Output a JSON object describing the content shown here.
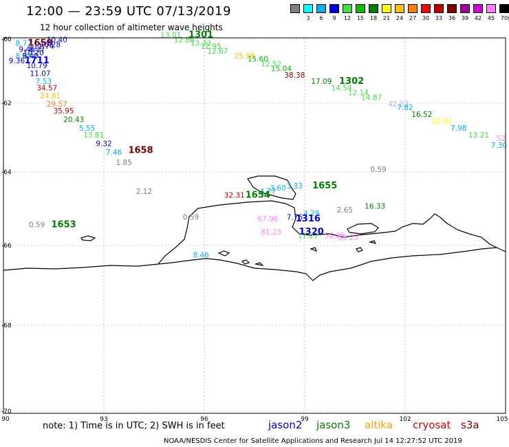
{
  "header": {
    "title": "12:00 — 23:59 UTC 07/13/2019",
    "subtitle": "12 hour collection of altimeter wave heights"
  },
  "legend": {
    "unit": "(ft)",
    "bins": [
      {
        "label": "",
        "color": "#808080"
      },
      {
        "label": "3",
        "color": "#00ffff"
      },
      {
        "label": "6",
        "color": "#00b0f0"
      },
      {
        "label": "9",
        "color": "#0000e0"
      },
      {
        "label": "12",
        "color": "#40e040"
      },
      {
        "label": "15",
        "color": "#00c000"
      },
      {
        "label": "18",
        "color": "#008000"
      },
      {
        "label": "21",
        "color": "#ffff00"
      },
      {
        "label": "24",
        "color": "#ffc000"
      },
      {
        "label": "27",
        "color": "#ff8000"
      },
      {
        "label": "30",
        "color": "#ff0000"
      },
      {
        "label": "33",
        "color": "#c00000"
      },
      {
        "label": "36",
        "color": "#800000"
      },
      {
        "label": "39",
        "color": "#a000a0"
      },
      {
        "label": "42",
        "color": "#d000d0"
      },
      {
        "label": "45",
        "color": "#ff80ff"
      },
      {
        "label": "70",
        "color": "#000000"
      }
    ]
  },
  "axes": {
    "y_ticks": [
      "-60",
      "-62",
      "-64",
      "-66",
      "-68",
      "-70"
    ],
    "x_ticks": [
      "90",
      "93",
      "96",
      "99",
      "102",
      "105"
    ]
  },
  "labels": [
    {
      "t": "8.77",
      "lon": 90.6,
      "lat": -60.2,
      "c": "#00b0f0"
    },
    {
      "t": "1659",
      "lon": 91.1,
      "lat": -60.2,
      "c": "#800000",
      "b": 1
    },
    {
      "t": "10.40",
      "lon": 91.6,
      "lat": -60.1,
      "c": "#0000e0"
    },
    {
      "t": "10.28",
      "lon": 91.4,
      "lat": -60.25,
      "c": "#0000e0"
    },
    {
      "t": "11.74",
      "lon": 91.2,
      "lat": -60.3,
      "c": "#0000e0"
    },
    {
      "t": "9.46",
      "lon": 90.7,
      "lat": -60.4,
      "c": "#0000e0"
    },
    {
      "t": "8.37",
      "lon": 91.0,
      "lat": -60.4,
      "c": "#0000e0"
    },
    {
      "t": "10.20",
      "lon": 90.9,
      "lat": -60.5,
      "c": "#0000e0"
    },
    {
      "t": "8.85",
      "lon": 90.6,
      "lat": -60.6,
      "c": "#00b0f0"
    },
    {
      "t": "9.40",
      "lon": 90.8,
      "lat": -60.6,
      "c": "#0000e0"
    },
    {
      "t": "1711",
      "lon": 91.0,
      "lat": -60.75,
      "c": "#0000e0",
      "b": 1
    },
    {
      "t": "9.36",
      "lon": 90.4,
      "lat": -60.75,
      "c": "#0000e0"
    },
    {
      "t": "10.79",
      "lon": 91.0,
      "lat": -60.9,
      "c": "#0000e0"
    },
    {
      "t": "11.07",
      "lon": 91.1,
      "lat": -61.15,
      "c": "#0000e0"
    },
    {
      "t": "7.53",
      "lon": 91.2,
      "lat": -61.4,
      "c": "#00b0f0"
    },
    {
      "t": "34.57",
      "lon": 91.3,
      "lat": -61.6,
      "c": "#c00000"
    },
    {
      "t": "24.81",
      "lon": 91.4,
      "lat": -61.85,
      "c": "#ffc000"
    },
    {
      "t": "29.57",
      "lon": 91.6,
      "lat": -62.1,
      "c": "#ff8000"
    },
    {
      "t": "35.95",
      "lon": 91.8,
      "lat": -62.3,
      "c": "#c00000"
    },
    {
      "t": "20.43",
      "lon": 92.1,
      "lat": -62.55,
      "c": "#008000"
    },
    {
      "t": "5.55",
      "lon": 92.5,
      "lat": -62.8,
      "c": "#00b0f0"
    },
    {
      "t": "13.81",
      "lon": 92.7,
      "lat": -63.0,
      "c": "#40e040"
    },
    {
      "t": "9.32",
      "lon": 93.0,
      "lat": -63.25,
      "c": "#0000e0"
    },
    {
      "t": "7.46",
      "lon": 93.3,
      "lat": -63.5,
      "c": "#00b0f0"
    },
    {
      "t": "1658",
      "lon": 94.1,
      "lat": -63.45,
      "c": "#800000",
      "b": 1
    },
    {
      "t": "1.85",
      "lon": 93.6,
      "lat": -63.8,
      "c": "#808080"
    },
    {
      "t": "13.01",
      "lon": 95.0,
      "lat": -59.95,
      "c": "#40e040"
    },
    {
      "t": "1301",
      "lon": 95.9,
      "lat": -59.95,
      "c": "#008000",
      "b": 1
    },
    {
      "t": "12.86",
      "lon": 95.4,
      "lat": -60.1,
      "c": "#40e040"
    },
    {
      "t": "13.33",
      "lon": 95.9,
      "lat": -60.2,
      "c": "#40e040"
    },
    {
      "t": "12.95",
      "lon": 96.2,
      "lat": -60.3,
      "c": "#40e040"
    },
    {
      "t": "12.67",
      "lon": 96.4,
      "lat": -60.45,
      "c": "#40e040"
    },
    {
      "t": "25.98",
      "lon": 97.2,
      "lat": -60.6,
      "c": "#ffc000"
    },
    {
      "t": "15.60",
      "lon": 97.6,
      "lat": -60.7,
      "c": "#00c000"
    },
    {
      "t": "12.52",
      "lon": 98.0,
      "lat": -60.85,
      "c": "#40e040"
    },
    {
      "t": "15.04",
      "lon": 98.3,
      "lat": -61.0,
      "c": "#00c000"
    },
    {
      "t": "38.38",
      "lon": 98.7,
      "lat": -61.2,
      "c": "#800000"
    },
    {
      "t": "17.09",
      "lon": 99.5,
      "lat": -61.4,
      "c": "#008000"
    },
    {
      "t": "1302",
      "lon": 100.4,
      "lat": -61.4,
      "c": "#008000",
      "b": 1
    },
    {
      "t": "14.54",
      "lon": 100.1,
      "lat": -61.6,
      "c": "#40e040"
    },
    {
      "t": "12.14",
      "lon": 100.6,
      "lat": -61.75,
      "c": "#40e040"
    },
    {
      "t": "14.87",
      "lon": 101.0,
      "lat": -61.9,
      "c": "#40e040"
    },
    {
      "t": "42.03",
      "lon": 101.8,
      "lat": -62.1,
      "c": "#b0b0ff"
    },
    {
      "t": "7.82",
      "lon": 102.0,
      "lat": -62.2,
      "c": "#00b0f0"
    },
    {
      "t": "16.52",
      "lon": 102.5,
      "lat": -62.4,
      "c": "#008000"
    },
    {
      "t": "22.87",
      "lon": 103.1,
      "lat": -62.6,
      "c": "#ffff00"
    },
    {
      "t": "7.98",
      "lon": 103.6,
      "lat": -62.8,
      "c": "#00b0f0"
    },
    {
      "t": "13.21",
      "lon": 104.2,
      "lat": -63.0,
      "c": "#40e040"
    },
    {
      "t": "7.30",
      "lon": 104.8,
      "lat": -63.3,
      "c": "#00b0f0"
    },
    {
      "t": "52.",
      "lon": 104.9,
      "lat": -63.1,
      "c": "#ff80ff"
    },
    {
      "t": "0.59",
      "lon": 101.2,
      "lat": -64.0,
      "c": "#808080"
    },
    {
      "t": "2.12",
      "lon": 94.2,
      "lat": -64.6,
      "c": "#808080"
    },
    {
      "t": "3.60",
      "lon": 98.2,
      "lat": -64.5,
      "c": "#00b0f0"
    },
    {
      "t": "3.33",
      "lon": 98.7,
      "lat": -64.45,
      "c": "#00b0f0"
    },
    {
      "t": "4.77",
      "lon": 97.9,
      "lat": -64.6,
      "c": "#00b0f0"
    },
    {
      "t": "1655",
      "lon": 99.6,
      "lat": -64.45,
      "c": "#008000",
      "b": 1
    },
    {
      "t": "32.31",
      "lon": 96.9,
      "lat": -64.7,
      "c": "#c00000"
    },
    {
      "t": "1654",
      "lon": 97.6,
      "lat": -64.7,
      "c": "#008000",
      "b": 1
    },
    {
      "t": "16.33",
      "lon": 101.1,
      "lat": -65.0,
      "c": "#008000"
    },
    {
      "t": "2.65",
      "lon": 100.2,
      "lat": -65.1,
      "c": "#808080"
    },
    {
      "t": "0.59",
      "lon": 95.6,
      "lat": -65.3,
      "c": "#808080"
    },
    {
      "t": "0.59",
      "lon": 91.0,
      "lat": -65.5,
      "c": "#808080"
    },
    {
      "t": "1653",
      "lon": 91.8,
      "lat": -65.5,
      "c": "#008000",
      "b": 1
    },
    {
      "t": "4.29",
      "lon": 99.2,
      "lat": -65.2,
      "c": "#00b0f0"
    },
    {
      "t": "67.96",
      "lon": 97.9,
      "lat": -65.35,
      "c": "#ff80ff"
    },
    {
      "t": "7.76",
      "lon": 98.7,
      "lat": -65.3,
      "c": "#0000e0"
    },
    {
      "t": "1316",
      "lon": 99.1,
      "lat": -65.35,
      "c": "#0000e0",
      "b": 1
    },
    {
      "t": "81.23",
      "lon": 98.0,
      "lat": -65.7,
      "c": "#ff80ff"
    },
    {
      "t": "1320",
      "lon": 99.2,
      "lat": -65.7,
      "c": "#0000e0",
      "b": 1
    },
    {
      "t": "17.27",
      "lon": 99.1,
      "lat": -65.8,
      "c": "#40e040"
    },
    {
      "t": "56.85",
      "lon": 99.9,
      "lat": -65.8,
      "c": "#ff80ff"
    },
    {
      "t": "55.25",
      "lon": 100.3,
      "lat": -65.85,
      "c": "#ff80ff"
    },
    {
      "t": "8.46",
      "lon": 95.9,
      "lat": -66.3,
      "c": "#00b0f0"
    }
  ],
  "footer": {
    "note": "note: 1) Time is in UTC; 2) SWH is in feet",
    "missions": [
      {
        "name": "jason2",
        "color": "#0000e0"
      },
      {
        "name": "jason3",
        "color": "#008000"
      },
      {
        "name": "altika",
        "color": "#ffa000"
      },
      {
        "name": "cryosat",
        "color": "#e00000"
      },
      {
        "name": "s3a",
        "color": "#800000"
      }
    ],
    "credit": "NOAA/NESDIS Center for Satellite Applications and Research   Jul 14 12:27:52 UTC 2019"
  }
}
